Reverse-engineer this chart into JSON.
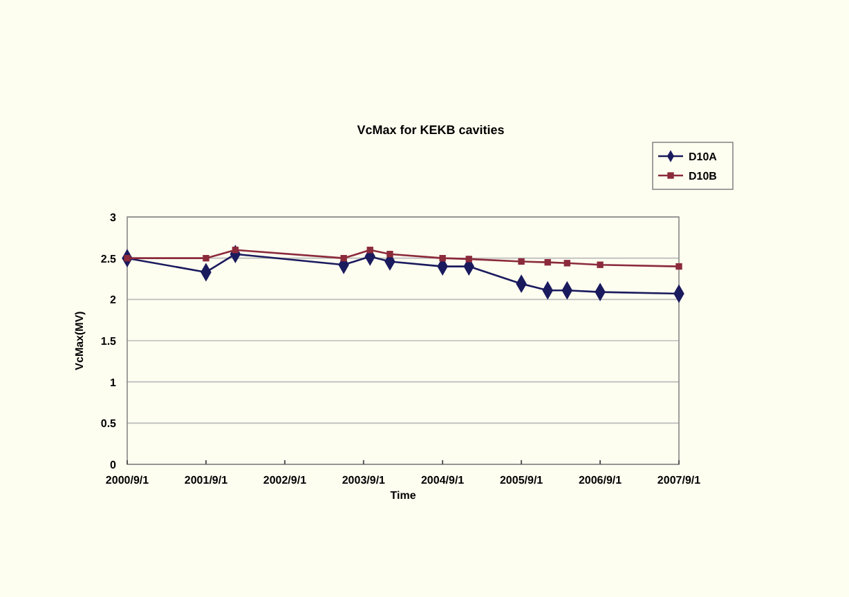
{
  "chart_data": {
    "type": "line",
    "title": "VcMax for KEKB cavities",
    "xlabel": "Time",
    "ylabel": "VcMax(MV)",
    "x": [
      "2000-09-01",
      "2001-09-01",
      "2002-01-15",
      "2003-06-01",
      "2003-10-01",
      "2004-01-01",
      "2004-09-01",
      "2005-01-01",
      "2005-09-01",
      "2006-01-01",
      "2006-04-01",
      "2006-09-01",
      "2007-09-01"
    ],
    "series": [
      {
        "name": "D10A",
        "color": "#1a1a5e",
        "marker": "diamond",
        "values": [
          2.5,
          2.33,
          2.55,
          2.42,
          2.52,
          2.46,
          2.4,
          2.4,
          2.19,
          2.11,
          2.11,
          2.09,
          2.07
        ]
      },
      {
        "name": "D10B",
        "color": "#8b2a3a",
        "marker": "square",
        "values": [
          2.5,
          2.5,
          2.6,
          2.5,
          2.6,
          2.55,
          2.5,
          2.49,
          2.46,
          2.45,
          2.44,
          2.42,
          2.4
        ]
      }
    ],
    "xlim": [
      "2000-09-01",
      "2007-09-01"
    ],
    "xticks": [
      {
        "value": "2000-09-01",
        "label": "2000/9/1"
      },
      {
        "value": "2001-09-01",
        "label": "2001/9/1"
      },
      {
        "value": "2002-09-01",
        "label": "2002/9/1"
      },
      {
        "value": "2003-09-01",
        "label": "2003/9/1"
      },
      {
        "value": "2004-09-01",
        "label": "2004/9/1"
      },
      {
        "value": "2005-09-01",
        "label": "2005/9/1"
      },
      {
        "value": "2006-09-01",
        "label": "2006/9/1"
      },
      {
        "value": "2007-09-01",
        "label": "2007/9/1"
      }
    ],
    "ylim": [
      0,
      3
    ],
    "yticks": [
      0,
      0.5,
      1,
      1.5,
      2,
      2.5,
      3
    ],
    "grid": "y",
    "legend": "top right"
  }
}
